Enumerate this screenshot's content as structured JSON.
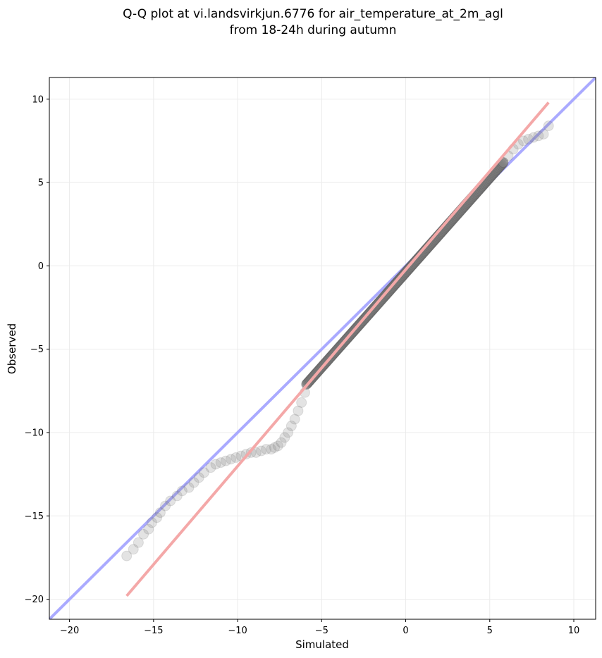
{
  "chart_data": {
    "type": "scatter",
    "title": "Q-Q plot at vi.landsvirkjun.6776 for air_temperature_at_2m_agl",
    "subtitle": "from 18-24h during autumn",
    "xlabel": "Simulated",
    "ylabel": "Observed",
    "xlim": [
      -21.2,
      11.3
    ],
    "ylim": [
      -21.2,
      11.3
    ],
    "xticks": [
      -20,
      -15,
      -10,
      -5,
      0,
      5,
      10
    ],
    "yticks": [
      -20,
      -15,
      -10,
      -5,
      0,
      5,
      10
    ],
    "xtick_labels": [
      "−20",
      "−15",
      "−10",
      "−5",
      "0",
      "5",
      "10"
    ],
    "ytick_labels": [
      "−20",
      "−15",
      "−10",
      "−5",
      "0",
      "5",
      "10"
    ],
    "grid": true,
    "reference_lines": [
      {
        "label": "1:1 line",
        "color": "#aaaaff",
        "x": [
          -21.2,
          11.3
        ],
        "y": [
          -21.2,
          11.3
        ]
      },
      {
        "label": "fit line",
        "color": "#f4a8a8",
        "x": [
          -16.6,
          8.5
        ],
        "y": [
          -19.8,
          9.8
        ]
      }
    ],
    "point_color": "#808080",
    "outlier_points": {
      "x": [
        -16.6,
        -16.2,
        -15.9,
        -15.6,
        -15.3,
        -15.1,
        -14.8,
        -14.6,
        -14.3,
        -14.0,
        -13.6,
        -13.3,
        -12.9,
        -12.6,
        -12.3,
        -12.0,
        -11.6,
        -11.3,
        -11.0,
        -10.7,
        -10.4,
        -10.1,
        -9.8,
        -9.5,
        -9.2,
        -8.9,
        -8.6,
        -8.3,
        -8.0,
        -7.8,
        -7.6,
        -7.4,
        -7.2,
        -7.0,
        -6.8,
        -6.6,
        -6.4,
        -6.2,
        -6.0,
        -5.9,
        5.8,
        6.1,
        6.4,
        6.7,
        7.0,
        7.3,
        7.6,
        7.9,
        8.2,
        8.5
      ],
      "y": [
        -17.4,
        -17.0,
        -16.6,
        -16.1,
        -15.8,
        -15.4,
        -15.1,
        -14.8,
        -14.4,
        -14.1,
        -13.8,
        -13.5,
        -13.3,
        -13.0,
        -12.7,
        -12.4,
        -12.1,
        -11.9,
        -11.8,
        -11.7,
        -11.6,
        -11.5,
        -11.4,
        -11.3,
        -11.2,
        -11.2,
        -11.1,
        -11.0,
        -11.0,
        -10.9,
        -10.8,
        -10.6,
        -10.3,
        -10.0,
        -9.6,
        -9.2,
        -8.7,
        -8.2,
        -7.6,
        -7.1,
        6.2,
        6.6,
        7.0,
        7.3,
        7.5,
        7.6,
        7.7,
        7.8,
        7.9,
        8.4
      ]
    },
    "core_points": {
      "x_start": -5.9,
      "x_end": 5.8,
      "y_start": -7.1,
      "y_end": 6.2
    }
  }
}
